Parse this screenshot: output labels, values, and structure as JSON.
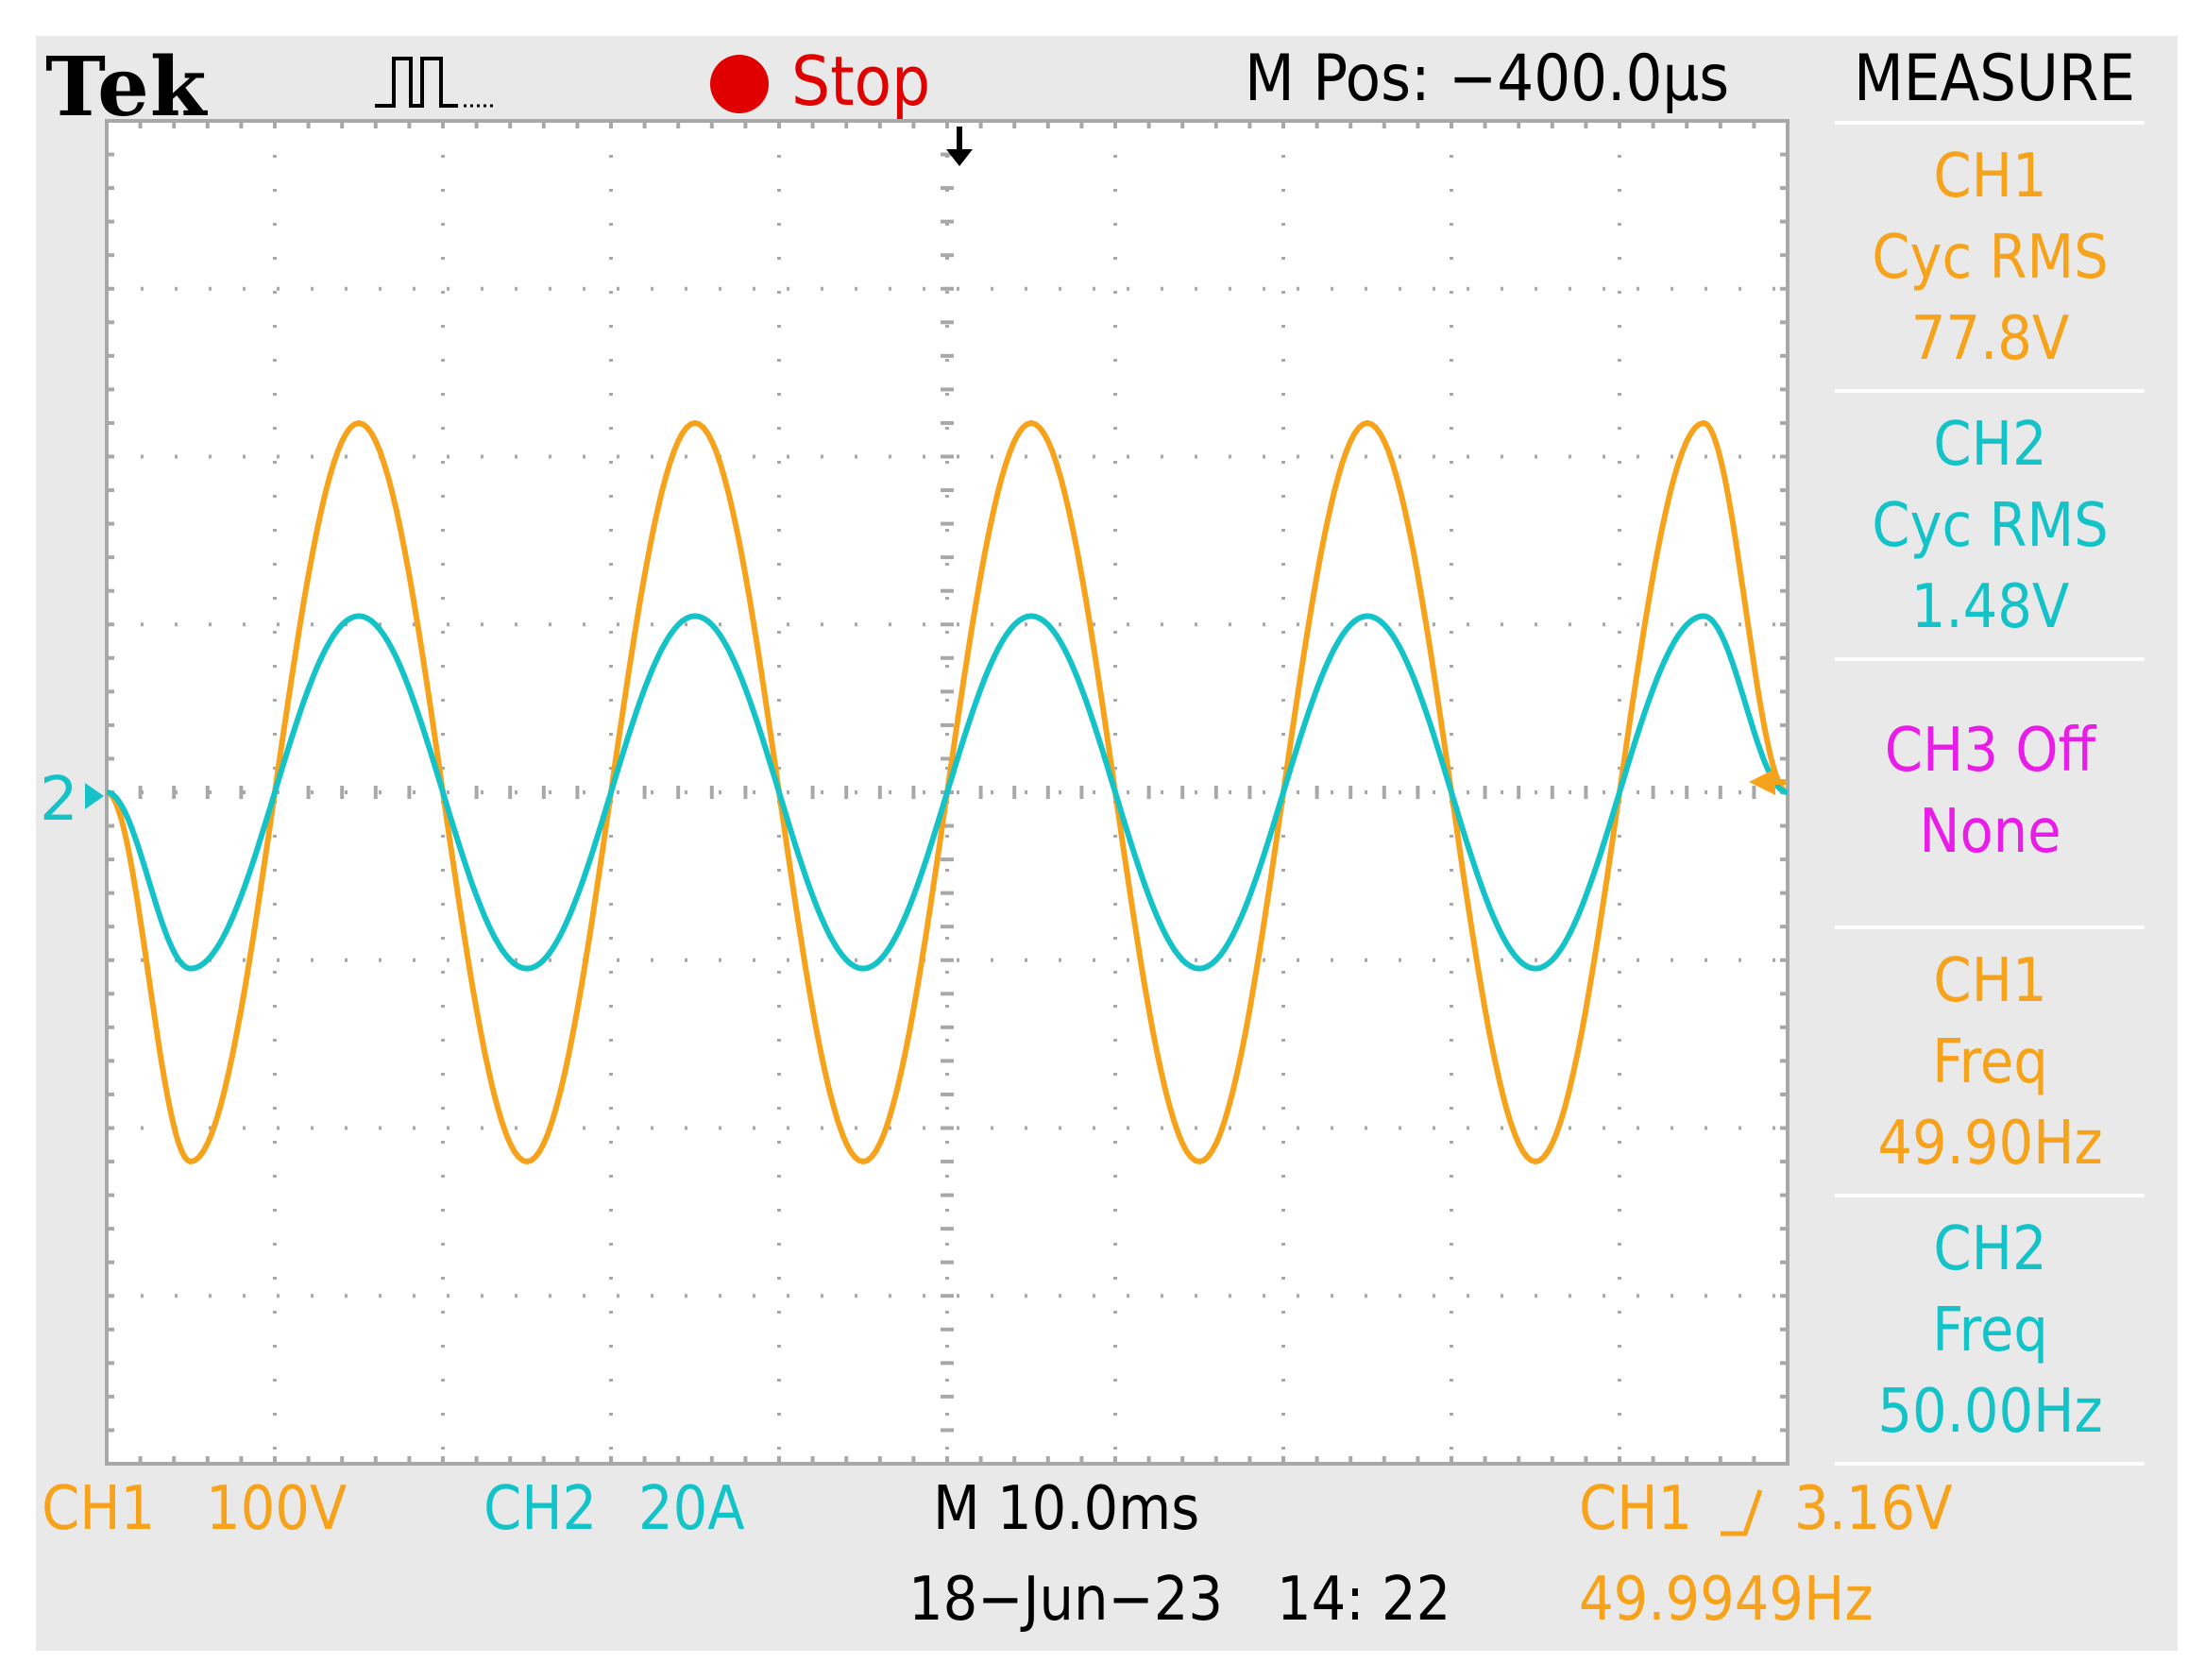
{
  "header": {
    "brand": "Tek",
    "acquisition_icon": "pulse-waveform-icon",
    "run_state": "Stop",
    "run_state_icon": "stop-dot-icon",
    "horizontal_position": "M Pos: −400.0µs"
  },
  "menu": {
    "title": "MEASURE",
    "items": [
      {
        "source": "CH1",
        "type": "Cyc RMS",
        "value": "77.8V",
        "color": "#f7a21b"
      },
      {
        "source": "CH2",
        "type": "Cyc RMS",
        "value": "1.48V",
        "color": "#13c3c8"
      },
      {
        "source": "CH3 Off",
        "type": "None",
        "value": "",
        "color": "#e81ee8"
      },
      {
        "source": "CH1",
        "type": "Freq",
        "value": "49.90Hz",
        "color": "#f7a21b"
      },
      {
        "source": "CH2",
        "type": "Freq",
        "value": "50.00Hz",
        "color": "#13c3c8"
      }
    ]
  },
  "footer": {
    "ch1_label": "CH1",
    "ch1_scale": "100V",
    "ch2_label": "CH2",
    "ch2_scale": "20A",
    "timebase": "M 10.0ms",
    "date": "18−Jun−23",
    "time": "14: 22",
    "trigger_source": "CH1",
    "trigger_slope_icon": "rising-edge-icon",
    "trigger_level": "3.16V",
    "trigger_frequency": "49.9949Hz"
  },
  "markers": {
    "ch2_ground_label": "2"
  },
  "colors": {
    "ch1": "#f7a21b",
    "ch2": "#13c3c8",
    "ch3": "#e81ee8",
    "stop": "#e00000",
    "graticule": "#a8a8a8",
    "panel": "#e9e9e9"
  },
  "chart_data": {
    "type": "line",
    "x_unit": "div",
    "y_unit": "div",
    "xlim": [
      0,
      10
    ],
    "ylim": [
      -4,
      4
    ],
    "series": [
      {
        "name": "CH1",
        "color": "#f7a21b",
        "x": [
          0,
          0.5,
          1.5,
          2.5,
          3.5,
          4.5,
          5.5,
          6.5,
          7.5,
          8.5,
          9.5,
          10
        ],
        "y": [
          0,
          -2.2,
          2.2,
          -2.2,
          2.2,
          -2.2,
          2.2,
          -2.2,
          2.2,
          -2.2,
          2.2,
          0
        ]
      },
      {
        "name": "CH2",
        "color": "#13c3c8",
        "x": [
          0,
          0.5,
          1.5,
          2.5,
          3.5,
          4.5,
          5.5,
          6.5,
          7.5,
          8.5,
          9.5,
          10
        ],
        "y": [
          0,
          -1.05,
          1.05,
          -1.05,
          1.05,
          -1.05,
          1.05,
          -1.05,
          1.05,
          -1.05,
          1.05,
          0
        ]
      }
    ]
  }
}
